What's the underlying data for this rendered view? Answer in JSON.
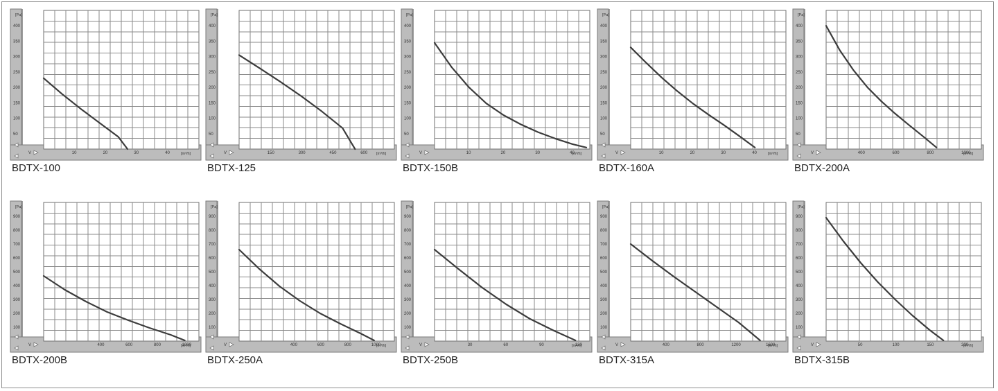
{
  "chart_data": [
    {
      "type": "line",
      "title": "BDTX-100",
      "xlabel": "V",
      "x_unit": "[m³/h]",
      "ylabel": "[Pa]",
      "xticks": [
        10,
        20,
        30,
        40
      ],
      "yticks": [
        50,
        100,
        150,
        200,
        250,
        300,
        350,
        400
      ],
      "xlim": [
        0,
        50
      ],
      "ylim": [
        0,
        450
      ],
      "x": [
        0,
        6,
        12,
        18,
        24,
        27
      ],
      "y": [
        230,
        178,
        130,
        85,
        40,
        0
      ],
      "grid": true
    },
    {
      "type": "line",
      "title": "BDTX-125",
      "xlabel": "V",
      "x_unit": "[m³/h]",
      "ylabel": "[Pa]",
      "xticks": [
        150,
        300,
        450,
        600
      ],
      "yticks": [
        50,
        100,
        150,
        200,
        250,
        300,
        350,
        400
      ],
      "xlim": [
        0,
        750
      ],
      "ylim": [
        0,
        450
      ],
      "x": [
        0,
        100,
        200,
        300,
        400,
        500,
        560
      ],
      "y": [
        305,
        262,
        218,
        172,
        122,
        68,
        0
      ],
      "grid": true
    },
    {
      "type": "line",
      "title": "BDTX-150B",
      "xlabel": "V",
      "x_unit": "[m³/h]",
      "ylabel": "[Pa]",
      "xticks": [
        10,
        20,
        30,
        40
      ],
      "yticks": [
        50,
        100,
        150,
        200,
        250,
        300,
        350,
        400
      ],
      "xlim": [
        0,
        45
      ],
      "ylim": [
        0,
        450
      ],
      "x": [
        0,
        5,
        10,
        15,
        20,
        25,
        30,
        35,
        40,
        44
      ],
      "y": [
        345,
        265,
        200,
        148,
        110,
        80,
        55,
        34,
        16,
        5
      ],
      "grid": true
    },
    {
      "type": "line",
      "title": "BDTX-160A",
      "xlabel": "V",
      "x_unit": "[m³/h]",
      "ylabel": "[Pa]",
      "xticks": [
        10,
        20,
        30,
        40
      ],
      "yticks": [
        50,
        100,
        150,
        200,
        250,
        300,
        350,
        400
      ],
      "xlim": [
        0,
        50
      ],
      "ylim": [
        0,
        450
      ],
      "x": [
        0,
        5,
        10,
        15,
        20,
        25,
        30,
        35,
        40
      ],
      "y": [
        330,
        280,
        232,
        188,
        148,
        112,
        78,
        42,
        5
      ],
      "grid": true
    },
    {
      "type": "line",
      "title": "BDTX-200A",
      "xlabel": "V",
      "x_unit": "[m³/h]",
      "ylabel": "[Pa]",
      "xticks": [
        400,
        600,
        800,
        1000
      ],
      "yticks": [
        50,
        100,
        150,
        200,
        250,
        300,
        350,
        400
      ],
      "xlim": [
        200,
        1100
      ],
      "ylim": [
        0,
        450
      ],
      "x": [
        200,
        280,
        360,
        440,
        520,
        600,
        680,
        760,
        840
      ],
      "y": [
        400,
        320,
        255,
        200,
        155,
        115,
        78,
        42,
        5
      ],
      "grid": true
    },
    {
      "type": "line",
      "title": "BDTX-200B",
      "xlabel": "V",
      "x_unit": "[m³/h]",
      "ylabel": "[Pa]",
      "xticks": [
        400,
        600,
        800,
        1000
      ],
      "yticks": [
        100,
        200,
        300,
        400,
        500,
        600,
        700,
        800,
        900
      ],
      "xlim": [
        0,
        1100
      ],
      "ylim": [
        0,
        1000
      ],
      "x": [
        0,
        150,
        300,
        450,
        600,
        750,
        900,
        1000
      ],
      "y": [
        470,
        370,
        285,
        210,
        150,
        95,
        45,
        5
      ],
      "grid": true
    },
    {
      "type": "line",
      "title": "BDTX-250A",
      "xlabel": "V",
      "x_unit": "[m³/h]",
      "ylabel": "[Pa]",
      "xticks": [
        400,
        600,
        800,
        1000
      ],
      "yticks": [
        100,
        200,
        300,
        400,
        500,
        600,
        700,
        800,
        900
      ],
      "xlim": [
        0,
        1150
      ],
      "ylim": [
        0,
        1000
      ],
      "x": [
        0,
        150,
        300,
        450,
        600,
        750,
        900,
        1000
      ],
      "y": [
        660,
        520,
        395,
        290,
        200,
        125,
        55,
        5
      ],
      "grid": true
    },
    {
      "type": "line",
      "title": "BDTX-250B",
      "xlabel": "V",
      "x_unit": "[m³/h]",
      "ylabel": "[Pa]",
      "xticks": [
        30,
        60,
        90,
        120
      ],
      "yticks": [
        100,
        200,
        300,
        400,
        500,
        600,
        700,
        800,
        900
      ],
      "xlim": [
        0,
        130
      ],
      "ylim": [
        0,
        1000
      ],
      "x": [
        0,
        20,
        40,
        60,
        80,
        100,
        118
      ],
      "y": [
        660,
        520,
        385,
        265,
        160,
        75,
        5
      ],
      "grid": true
    },
    {
      "type": "line",
      "title": "BDTX-315A",
      "xlabel": "V",
      "x_unit": "[m³/h]",
      "ylabel": "[Pa]",
      "xticks": [
        400,
        800,
        1200,
        1600
      ],
      "yticks": [
        100,
        200,
        300,
        400,
        500,
        600,
        700,
        800,
        900
      ],
      "xlim": [
        0,
        1800
      ],
      "ylim": [
        0,
        1000
      ],
      "x": [
        0,
        250,
        500,
        750,
        1000,
        1250,
        1500
      ],
      "y": [
        700,
        580,
        465,
        355,
        245,
        135,
        5
      ],
      "grid": true
    },
    {
      "type": "line",
      "title": "BDTX-315B",
      "xlabel": "V",
      "x_unit": "[m³/h]",
      "ylabel": "[Pa]",
      "xticks": [
        50,
        100,
        150,
        200
      ],
      "yticks": [
        100,
        200,
        300,
        400,
        500,
        600,
        700,
        800,
        900
      ],
      "xlim": [
        0,
        225
      ],
      "ylim": [
        0,
        1000
      ],
      "x": [
        0,
        25,
        50,
        75,
        100,
        125,
        150,
        170
      ],
      "y": [
        890,
        720,
        565,
        425,
        300,
        185,
        80,
        5
      ],
      "grid": true
    }
  ]
}
